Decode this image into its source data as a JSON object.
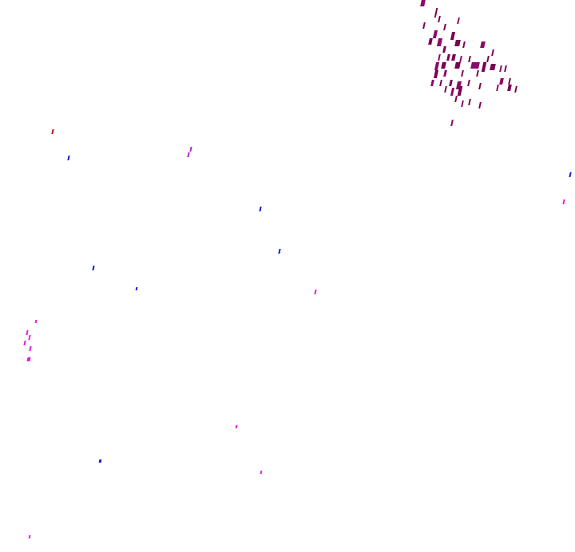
{
  "colors": {
    "cluster": "#7a0050",
    "blue": "#1a1acc",
    "magenta": "#e619e6",
    "violet": "#b020e0",
    "red": "#c0101a"
  }
}
